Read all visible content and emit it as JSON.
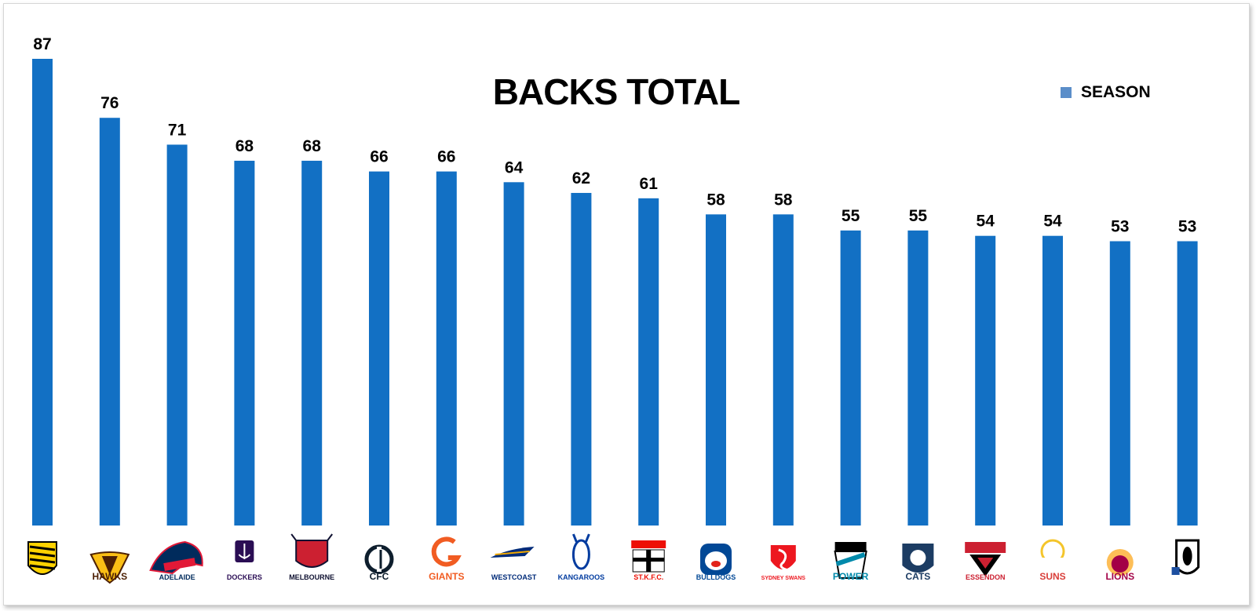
{
  "chart_data": {
    "type": "bar",
    "title": "BACKS TOTAL",
    "legend": {
      "placement": "top-right",
      "entries": [
        "SEASON"
      ]
    },
    "grid": false,
    "ylim": [
      0,
      87
    ],
    "categories": [
      "Richmond",
      "Hawthorn",
      "Adelaide",
      "Fremantle",
      "Melbourne",
      "Carlton",
      "GWS Giants",
      "West Coast",
      "North Melbourne",
      "St Kilda",
      "Western Bulldogs",
      "Sydney",
      "Port Adelaide",
      "Geelong",
      "Essendon",
      "Gold Coast",
      "Brisbane",
      "Collingwood"
    ],
    "series": [
      {
        "name": "SEASON",
        "color": "#1270C4",
        "values": [
          87,
          76,
          71,
          68,
          68,
          66,
          66,
          64,
          62,
          61,
          58,
          58,
          55,
          55,
          54,
          54,
          53,
          53
        ]
      }
    ],
    "logos": [
      {
        "team": "Richmond",
        "text": "",
        "icon": "tiger-logo",
        "colors": [
          "#FFD200",
          "#000000"
        ]
      },
      {
        "team": "Hawthorn",
        "text": "HAWKS",
        "icon": "hawk-logo",
        "colors": [
          "#4D2004",
          "#FBBF15"
        ]
      },
      {
        "team": "Adelaide",
        "text": "ADELAIDE",
        "icon": "crow-logo",
        "colors": [
          "#002B5C",
          "#E21937",
          "#FFD200"
        ]
      },
      {
        "team": "Fremantle",
        "text": "DOCKERS",
        "icon": "anchor-logo",
        "colors": [
          "#2A0D54",
          "#FFFFFF"
        ]
      },
      {
        "team": "Melbourne",
        "text": "MELBOURNE",
        "icon": "demon-logo",
        "colors": [
          "#0F1131",
          "#CC2031"
        ]
      },
      {
        "team": "Carlton",
        "text": "CFC",
        "icon": "monogram-logo",
        "colors": [
          "#0E1E2D"
        ]
      },
      {
        "team": "GWS Giants",
        "text": "GIANTS",
        "icon": "g-logo",
        "colors": [
          "#F15C22"
        ]
      },
      {
        "team": "West Coast",
        "text": "WESTCOAST",
        "icon": "eagle-logo",
        "colors": [
          "#002B79",
          "#F2A900"
        ]
      },
      {
        "team": "North Melbourne",
        "text": "KANGAROOS",
        "icon": "kangaroo-logo",
        "colors": [
          "#013B9F",
          "#FFFFFF"
        ]
      },
      {
        "team": "St Kilda",
        "text": "ST.K.F.C.",
        "icon": "cross-logo",
        "colors": [
          "#ED0F05",
          "#000000"
        ]
      },
      {
        "team": "Western Bulldogs",
        "text": "BULLDOGS",
        "icon": "bulldog-logo",
        "colors": [
          "#014896",
          "#E2231A"
        ]
      },
      {
        "team": "Sydney",
        "text": "SYDNEY SWANS",
        "icon": "swan-logo",
        "colors": [
          "#ED171F"
        ]
      },
      {
        "team": "Port Adelaide",
        "text": "POWER",
        "icon": "power-logo",
        "colors": [
          "#008AAB",
          "#000000"
        ]
      },
      {
        "team": "Geelong",
        "text": "CATS",
        "icon": "cat-logo",
        "colors": [
          "#1C3C63"
        ]
      },
      {
        "team": "Essendon",
        "text": "ESSENDON",
        "icon": "bomber-logo",
        "colors": [
          "#CC2031",
          "#000000"
        ]
      },
      {
        "team": "Gold Coast",
        "text": "SUNS",
        "icon": "sun-logo",
        "colors": [
          "#D93E39",
          "#F4C52B"
        ]
      },
      {
        "team": "Brisbane",
        "text": "LIONS",
        "icon": "lion-logo",
        "colors": [
          "#A30046",
          "#FDBE57"
        ]
      },
      {
        "team": "Collingwood",
        "text": "",
        "icon": "magpie-logo",
        "colors": [
          "#000000",
          "#FFFFFF"
        ]
      }
    ]
  }
}
